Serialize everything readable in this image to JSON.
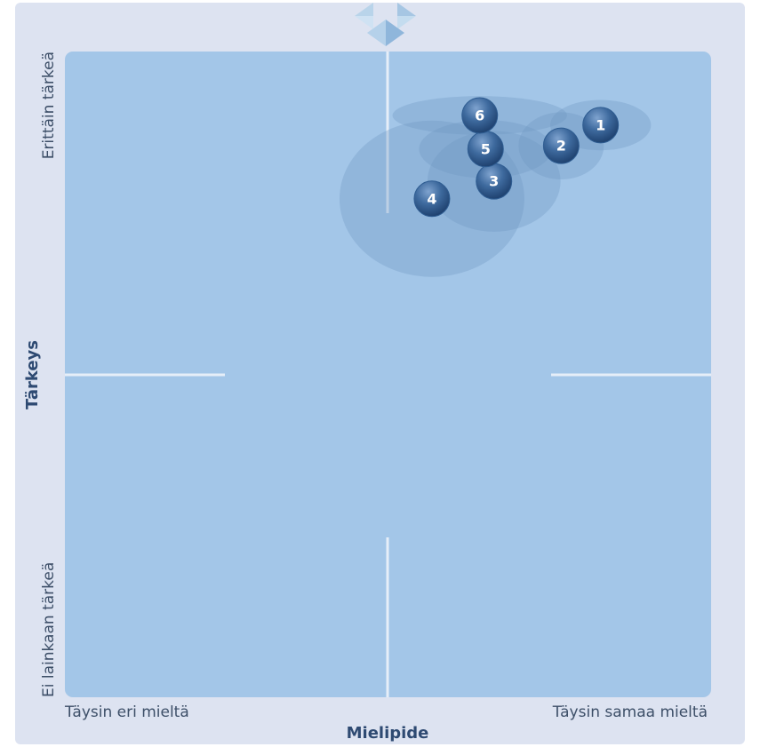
{
  "chart_data": {
    "type": "bubble",
    "x_label": "Mielipide",
    "y_label": "Tärkeys",
    "xlim": [
      0,
      100
    ],
    "ylim": [
      0,
      100
    ],
    "xticks": [
      {
        "value": 0,
        "label": "Täysin eri mieltä"
      },
      {
        "value": 100,
        "label": "Täysin samaa mieltä"
      }
    ],
    "yticks": [
      {
        "value": 0,
        "label": "Ei lainkaan tärkeä"
      },
      {
        "value": 100,
        "label": "Erittäin tärkeä"
      }
    ],
    "color": "#2f5d92",
    "spread_color": "#6f98c4",
    "points": [
      {
        "label": "1",
        "x": 82.9,
        "y": 88.6,
        "x_spread": 7.8,
        "y_spread": 3.9
      },
      {
        "label": "2",
        "x": 76.8,
        "y": 85.4,
        "x_spread": 6.6,
        "y_spread": 5.2
      },
      {
        "label": "3",
        "x": 66.4,
        "y": 79.9,
        "x_spread": 10.3,
        "y_spread": 7.8
      },
      {
        "label": "4",
        "x": 56.8,
        "y": 77.2,
        "x_spread": 14.3,
        "y_spread": 12.1
      },
      {
        "label": "5",
        "x": 65.1,
        "y": 84.9,
        "x_spread": 10.3,
        "y_spread": 4.5
      },
      {
        "label": "6",
        "x": 64.2,
        "y": 90.1,
        "x_spread": 13.5,
        "y_spread": 3.0
      }
    ]
  }
}
